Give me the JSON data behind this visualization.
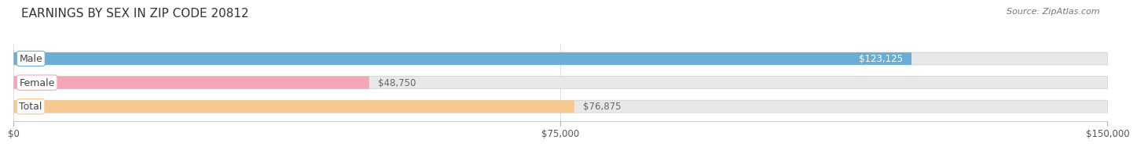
{
  "title": "EARNINGS BY SEX IN ZIP CODE 20812",
  "source": "Source: ZipAtlas.com",
  "categories": [
    "Male",
    "Female",
    "Total"
  ],
  "values": [
    123125,
    48750,
    76875
  ],
  "max_value": 150000,
  "bar_colors": [
    "#6aaed6",
    "#f4a6b8",
    "#f5c990"
  ],
  "value_labels": [
    "$123,125",
    "$48,750",
    "$76,875"
  ],
  "value_label_colors": [
    "white",
    "#666666",
    "#666666"
  ],
  "value_label_inside": [
    true,
    false,
    false
  ],
  "tick_values": [
    0,
    75000,
    150000
  ],
  "tick_labels": [
    "$0",
    "$75,000",
    "$150,000"
  ],
  "background_color": "#ffffff",
  "bar_bg_color": "#e8e8e8",
  "title_fontsize": 11,
  "bar_height": 0.52,
  "figsize": [
    14.06,
    1.96
  ]
}
